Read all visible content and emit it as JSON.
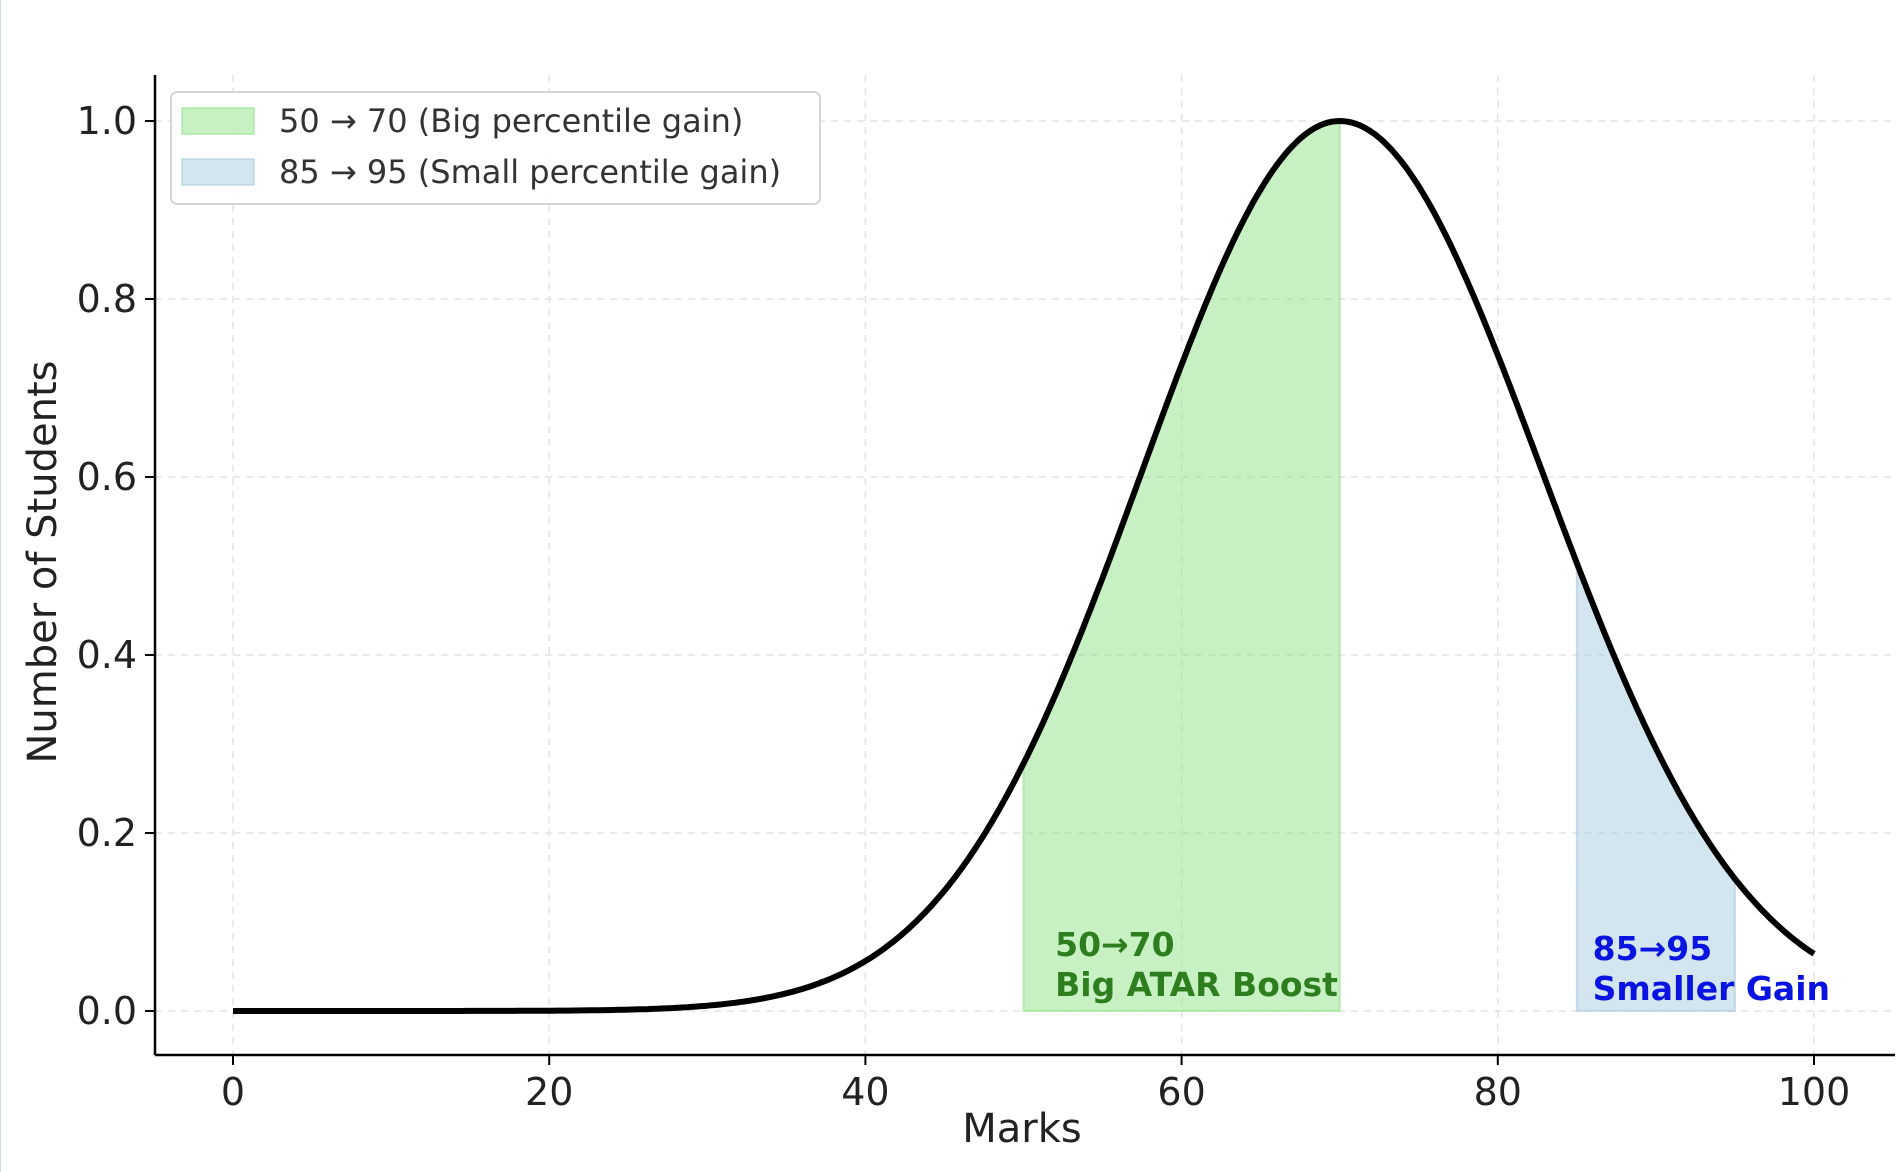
{
  "chart_data": {
    "type": "area",
    "xlabel": "Marks",
    "ylabel": "Number of Students",
    "xlim": [
      -5,
      105
    ],
    "ylim": [
      -0.05,
      1.05
    ],
    "xticks": [
      "0",
      "20",
      "40",
      "60",
      "80",
      "100"
    ],
    "yticks": [
      "0.0",
      "0.2",
      "0.4",
      "0.6",
      "0.8",
      "1.0"
    ],
    "grid": true,
    "legend_position": "top-left",
    "curve": {
      "x": [
        0,
        5,
        10,
        15,
        20,
        25,
        30,
        35,
        40,
        45,
        50,
        55,
        60,
        65,
        70,
        75,
        80,
        85,
        90,
        95,
        100
      ],
      "y": [
        0.0,
        0.0,
        0.0,
        0.0,
        0.0002,
        0.001,
        0.004,
        0.015,
        0.043,
        0.11,
        0.245,
        0.43,
        0.64,
        0.86,
        1.0,
        0.93,
        0.75,
        0.45,
        0.25,
        0.11,
        0.043
      ],
      "color": "#000000"
    },
    "series": [
      {
        "name": "50 → 70 (Big percentile gain)",
        "x_range": [
          50,
          70
        ],
        "color": "#90e488"
      },
      {
        "name": "85 → 95 (Small percentile gain)",
        "x_range": [
          85,
          95
        ],
        "color": "#a8cbdd"
      }
    ],
    "annotations": [
      {
        "line1": "50→70",
        "line2": "Big ATAR Boost",
        "x": 52,
        "color": "#2e7d1e"
      },
      {
        "line1": "85→95",
        "line2": "Smaller Gain",
        "x": 86,
        "color": "#0a14e0"
      }
    ]
  }
}
